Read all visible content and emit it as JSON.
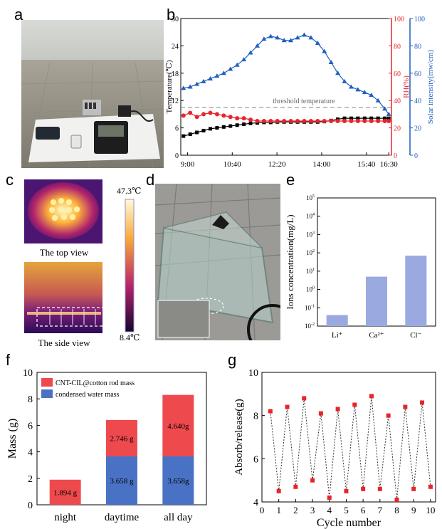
{
  "panel_labels": {
    "a": "a",
    "b": "b",
    "c": "c",
    "d": "d",
    "e": "e",
    "f": "f",
    "g": "g"
  },
  "photo_c": {
    "top_caption": "The top view",
    "side_caption": "The side view",
    "scale_max": "47.3℃",
    "scale_min": "8.4℃"
  },
  "colors": {
    "temperature": "#000000",
    "rh": "#e8242a",
    "solar": "#1f5fbf",
    "bar_e": "#9aaae0",
    "stack_top": "#ee4a4e",
    "stack_bottom": "#4a72c4",
    "cycle_marker": "#e8242a"
  },
  "chart_data": [
    {
      "id": "b",
      "type": "line",
      "xlabel": "",
      "x_ticks": [
        "9:00",
        "10:40",
        "12:20",
        "14:00",
        "15:40",
        "16:30"
      ],
      "x_tick_hours": [
        9.0,
        10.667,
        12.333,
        14.0,
        15.667,
        16.5
      ],
      "xlim": [
        8.75,
        16.6
      ],
      "y_left": {
        "label": "Temperature(℃)",
        "ticks": [
          "0",
          "6",
          "12",
          "18",
          "24",
          "30"
        ],
        "lim": [
          0,
          30
        ]
      },
      "y_right1": {
        "label": "RH(%)",
        "ticks": [
          "0",
          "20",
          "40",
          "60",
          "80",
          "100"
        ],
        "lim": [
          0,
          100
        ]
      },
      "y_right2": {
        "label": "Solar intensity(mw/cm)",
        "ticks": [
          "0",
          "20",
          "40",
          "60",
          "80",
          "100"
        ],
        "lim": [
          0,
          100
        ]
      },
      "annotation": "threshold temperature",
      "threshold": 10.5,
      "series": [
        {
          "axis": "left",
          "marker": "square",
          "x": [
            8.85,
            9.1,
            9.35,
            9.6,
            9.85,
            10.1,
            10.35,
            10.6,
            10.85,
            11.1,
            11.35,
            11.6,
            11.85,
            12.1,
            12.35,
            12.6,
            12.85,
            13.1,
            13.35,
            13.6,
            13.85,
            14.1,
            14.35,
            14.6,
            14.85,
            15.1,
            15.35,
            15.6,
            15.85,
            16.1,
            16.35,
            16.5
          ],
          "y": [
            4.2,
            4.6,
            5.0,
            5.4,
            5.8,
            6.0,
            6.2,
            6.4,
            6.6,
            6.8,
            7.0,
            7.1,
            7.2,
            7.2,
            7.3,
            7.3,
            7.3,
            7.3,
            7.3,
            7.3,
            7.3,
            7.4,
            7.6,
            7.9,
            8.1,
            8.1,
            8.1,
            8.1,
            8.1,
            8.1,
            8.1,
            8.1
          ]
        },
        {
          "axis": "right1",
          "marker": "circle",
          "x": [
            8.85,
            9.1,
            9.35,
            9.6,
            9.85,
            10.1,
            10.35,
            10.6,
            10.85,
            11.1,
            11.35,
            11.6,
            11.85,
            12.1,
            12.35,
            12.6,
            12.85,
            13.1,
            13.35,
            13.6,
            13.85,
            14.1,
            14.35,
            14.6,
            14.85,
            15.1,
            15.35,
            15.6,
            15.85,
            16.1,
            16.35,
            16.5
          ],
          "y": [
            29,
            31,
            28,
            30,
            31,
            30,
            29,
            28,
            27,
            27,
            26,
            25,
            25,
            25,
            25,
            25,
            25,
            25,
            25,
            25,
            25,
            25,
            25,
            25,
            25,
            25,
            25,
            25,
            25,
            25,
            25,
            25
          ]
        },
        {
          "axis": "right2",
          "marker": "triangle",
          "x": [
            8.85,
            9.1,
            9.35,
            9.6,
            9.85,
            10.1,
            10.35,
            10.6,
            10.85,
            11.1,
            11.35,
            11.6,
            11.85,
            12.1,
            12.35,
            12.6,
            12.85,
            13.1,
            13.35,
            13.6,
            13.85,
            14.1,
            14.35,
            14.6,
            14.85,
            15.1,
            15.35,
            15.6,
            15.85,
            16.1,
            16.35,
            16.5
          ],
          "y": [
            49,
            50,
            52,
            54,
            56,
            58,
            60,
            63,
            66,
            70,
            75,
            80,
            85,
            87,
            86,
            84,
            84,
            86,
            88,
            86,
            82,
            76,
            68,
            60,
            54,
            50,
            48,
            46,
            44,
            40,
            34,
            30
          ]
        }
      ]
    },
    {
      "id": "e",
      "type": "bar",
      "categories": [
        "Li⁺",
        "Ca²⁺",
        "Cl⁻"
      ],
      "values": [
        0.04,
        5,
        70
      ],
      "ylabel": "Ions concentration(mg/L)",
      "yscale": "log",
      "ylim": [
        0.01,
        100000
      ],
      "y_tick_exponents": [
        "-2",
        "-1",
        "0",
        "1",
        "2",
        "3",
        "4",
        "5"
      ]
    },
    {
      "id": "f",
      "type": "bar",
      "stacked": true,
      "categories": [
        "night",
        "daytime",
        "all day"
      ],
      "ylabel": "Mass (g)",
      "ylim": [
        0,
        10
      ],
      "y_ticks": [
        "0",
        "2",
        "4",
        "6",
        "8",
        "10"
      ],
      "series": [
        {
          "name": "condensed water mass",
          "values": [
            0,
            3.658,
            3.658
          ],
          "labels": [
            "",
            "3.658 g",
            "3.658g"
          ]
        },
        {
          "name": "CNT-CIL@cotton rod mass",
          "values": [
            1.894,
            2.746,
            4.64
          ],
          "labels": [
            "1.894 g",
            "2.746 g",
            "4.640g"
          ]
        }
      ]
    },
    {
      "id": "g",
      "type": "line",
      "xlabel": "Cycle number",
      "ylabel": "Absorb/release(g)",
      "xlim": [
        0,
        10.3
      ],
      "ylim": [
        4,
        10
      ],
      "x_ticks": [
        "0",
        "1",
        "2",
        "3",
        "4",
        "5",
        "6",
        "7",
        "8",
        "9",
        "10"
      ],
      "y_ticks": [
        "4",
        "6",
        "8",
        "10"
      ],
      "x": [
        0.5,
        1.0,
        1.5,
        2.0,
        2.5,
        3.0,
        3.5,
        4.0,
        4.5,
        5.0,
        5.5,
        6.0,
        6.5,
        7.0,
        7.5,
        8.0,
        8.5,
        9.0,
        9.5,
        10.0
      ],
      "y": [
        8.2,
        4.5,
        8.4,
        4.7,
        8.8,
        5.0,
        8.1,
        4.2,
        8.3,
        4.5,
        8.5,
        4.6,
        8.9,
        4.6,
        8.0,
        4.1,
        8.4,
        4.6,
        8.6,
        4.7
      ]
    }
  ]
}
